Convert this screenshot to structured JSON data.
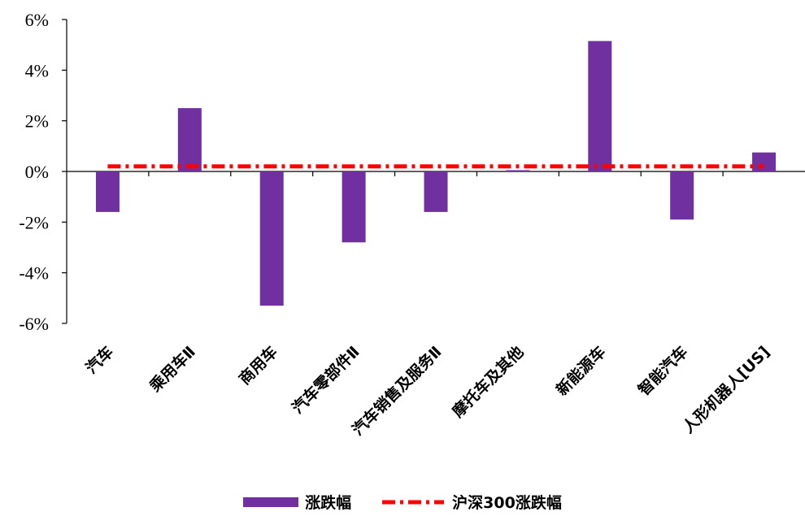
{
  "chart_data": {
    "type": "bar",
    "categories": [
      "汽车",
      "乘用车Ⅱ",
      "商用车",
      "汽车零部件Ⅱ",
      "汽车销售及服务Ⅱ",
      "摩托车及其他",
      "新能源车",
      "智能汽车",
      "人形机器人[US]"
    ],
    "series": [
      {
        "name": "涨跌幅",
        "type": "bar",
        "color": "#7030A0",
        "values": [
          -1.6,
          2.5,
          -5.3,
          -2.8,
          -1.6,
          0.05,
          5.15,
          -1.9,
          0.75
        ]
      },
      {
        "name": "沪深300涨跌幅",
        "type": "line",
        "color": "#FF0000",
        "value": 0.2
      }
    ],
    "ylim": [
      -6,
      6
    ],
    "yticks": [
      -6,
      -4,
      -2,
      0,
      2,
      4,
      6
    ],
    "ytick_labels": [
      "-6%",
      "-4%",
      "-2%",
      "0%",
      "2%",
      "4%",
      "6%"
    ],
    "title": "",
    "xlabel": "",
    "ylabel": "",
    "grid": false,
    "legend_position": "bottom"
  }
}
